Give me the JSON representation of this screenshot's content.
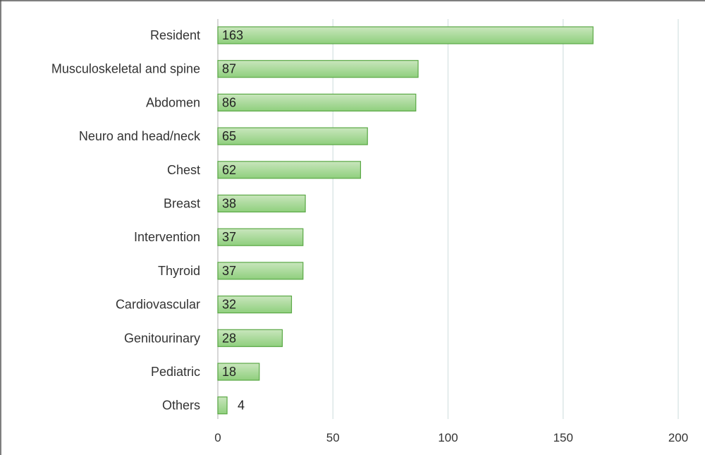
{
  "chart_data": {
    "type": "bar",
    "orientation": "horizontal",
    "title": "",
    "xlabel": "",
    "ylabel": "",
    "categories": [
      "Resident",
      "Musculoskeletal and spine",
      "Abdomen",
      "Neuro and head/neck",
      "Chest",
      "Breast",
      "Intervention",
      "Thyroid",
      "Cardiovascular",
      "Genitourinary",
      "Pediatric",
      "Others"
    ],
    "values": [
      163,
      87,
      86,
      65,
      62,
      38,
      37,
      37,
      32,
      28,
      18,
      4
    ],
    "xlim": [
      0,
      200
    ],
    "xticks": [
      0,
      50,
      100,
      150,
      200
    ],
    "grid": "vertical",
    "data_labels": true,
    "legend": "none",
    "colors": {
      "bar_fill_top": "#c9e6bd",
      "bar_fill_bottom": "#8fcf7d",
      "bar_stroke": "#5aa845",
      "grid": "#d7e3e3",
      "axis": "#bfbfbf",
      "frame": "#555555"
    }
  }
}
